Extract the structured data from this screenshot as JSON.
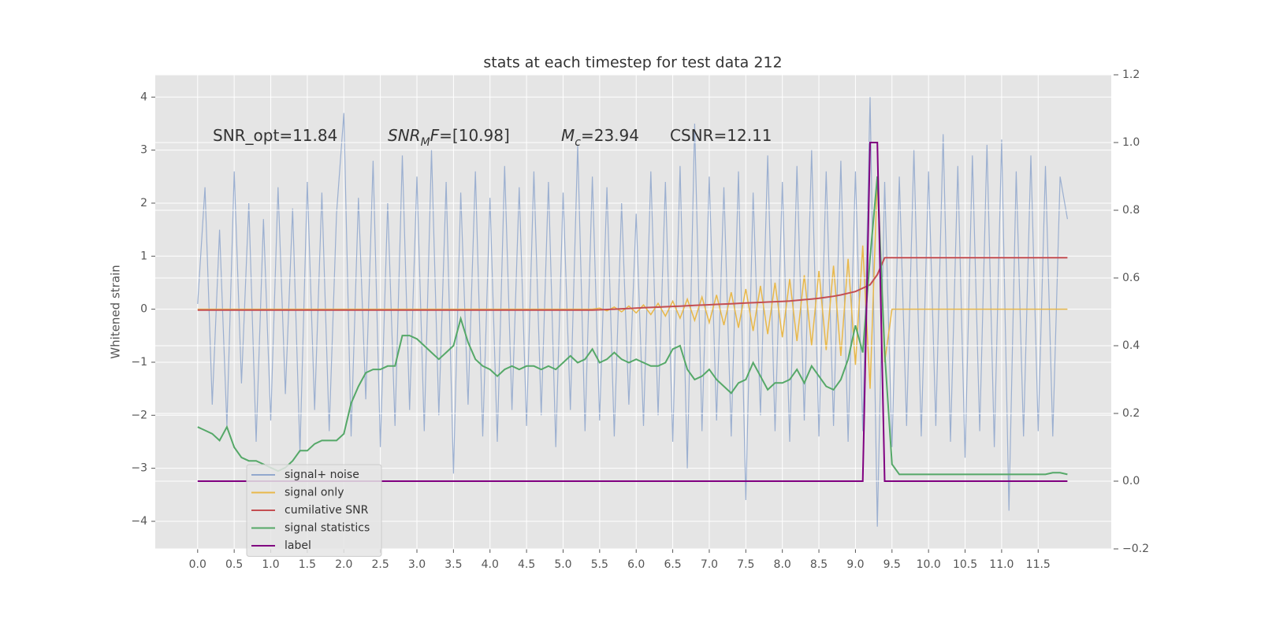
{
  "chart_data": {
    "type": "line",
    "title": "stats at each timestep for test data 212",
    "ylabel": "Whitened strain",
    "annotations": [
      [
        {
          "t": "SNR_opt=11.84"
        }
      ],
      [
        {
          "t": "SNR",
          "i": true
        },
        {
          "t": "M",
          "i": true,
          "sub": true
        },
        {
          "t": "F",
          "i": true
        },
        {
          "t": "=[10.98]"
        }
      ],
      [
        {
          "t": "M",
          "i": true
        },
        {
          "t": "c",
          "i": true,
          "sub": true
        },
        {
          "t": "=23.94"
        }
      ],
      [
        {
          "t": "CSNR=12.11"
        }
      ]
    ],
    "grid": true,
    "legend": "lower left",
    "xlim": [
      -0.58,
      12.5
    ],
    "ylim": [
      -4.52,
      4.42
    ],
    "y2lim": [
      -0.2,
      1.2
    ],
    "xticks": [
      {
        "value": 0,
        "label": "0.0"
      },
      {
        "value": 0.5,
        "label": "0.5"
      },
      {
        "value": 1,
        "label": "1.0"
      },
      {
        "value": 1.5,
        "label": "1.5"
      },
      {
        "value": 2,
        "label": "2.0"
      },
      {
        "value": 2.5,
        "label": "2.5"
      },
      {
        "value": 3,
        "label": "3.0"
      },
      {
        "value": 3.5,
        "label": "3.5"
      },
      {
        "value": 4,
        "label": "4.0"
      },
      {
        "value": 4.5,
        "label": "4.5"
      },
      {
        "value": 5,
        "label": "5.0"
      },
      {
        "value": 5.5,
        "label": "5.5"
      },
      {
        "value": 6,
        "label": "6.0"
      },
      {
        "value": 6.5,
        "label": "6.5"
      },
      {
        "value": 7,
        "label": "7.0"
      },
      {
        "value": 7.5,
        "label": "7.5"
      },
      {
        "value": 8,
        "label": "8.0"
      },
      {
        "value": 8.5,
        "label": "8.5"
      },
      {
        "value": 9,
        "label": "9.0"
      },
      {
        "value": 9.5,
        "label": "9.5"
      },
      {
        "value": 10,
        "label": "10.0"
      },
      {
        "value": 10.5,
        "label": "10.5"
      },
      {
        "value": 11,
        "label": "11.0"
      },
      {
        "value": 11.5,
        "label": "11.5"
      }
    ],
    "yticks": [
      {
        "value": -4,
        "label": "−4"
      },
      {
        "value": -3,
        "label": "−3"
      },
      {
        "value": -2,
        "label": "−2"
      },
      {
        "value": -1,
        "label": "−1"
      },
      0,
      1,
      2,
      3,
      4
    ],
    "y2ticks": [
      {
        "value": -0.2,
        "label": "−0.2"
      },
      {
        "value": 0,
        "label": "0.0"
      },
      {
        "value": 0.2,
        "label": "0.2"
      },
      {
        "value": 0.4,
        "label": "0.4"
      },
      {
        "value": 0.6,
        "label": "0.6"
      },
      {
        "value": 0.8,
        "label": "0.8"
      },
      {
        "value": 1,
        "label": "1.0"
      },
      {
        "value": 1.2,
        "label": "1.2"
      }
    ],
    "x": [
      0,
      0.1,
      0.2,
      0.3,
      0.4,
      0.5,
      0.6,
      0.7,
      0.8,
      0.9,
      1,
      1.1,
      1.2,
      1.3,
      1.4,
      1.5,
      1.6,
      1.7,
      1.8,
      1.9,
      2,
      2.1,
      2.2,
      2.3,
      2.4,
      2.5,
      2.6,
      2.7,
      2.8,
      2.9,
      3,
      3.1,
      3.2,
      3.3,
      3.4,
      3.5,
      3.6,
      3.7,
      3.8,
      3.9,
      4,
      4.1,
      4.2,
      4.3,
      4.4,
      4.5,
      4.6,
      4.7,
      4.8,
      4.9,
      5,
      5.1,
      5.2,
      5.3,
      5.4,
      5.5,
      5.6,
      5.7,
      5.8,
      5.9,
      6,
      6.1,
      6.2,
      6.3,
      6.4,
      6.5,
      6.6,
      6.7,
      6.8,
      6.9,
      7,
      7.1,
      7.2,
      7.3,
      7.4,
      7.5,
      7.6,
      7.7,
      7.8,
      7.9,
      8,
      8.1,
      8.2,
      8.3,
      8.4,
      8.5,
      8.6,
      8.7,
      8.8,
      8.9,
      9,
      9.1,
      9.2,
      9.3,
      9.4,
      9.5,
      9.6,
      9.7,
      9.8,
      9.9,
      10,
      10.1,
      10.2,
      10.3,
      10.4,
      10.5,
      10.6,
      10.7,
      10.8,
      10.9,
      11,
      11.1,
      11.2,
      11.3,
      11.4,
      11.5,
      11.6,
      11.7,
      11.8,
      11.9
    ],
    "series": [
      {
        "name": "signal+ noise",
        "color": "#92a8cd",
        "values": [
          0.1,
          2.3,
          -1.8,
          1.5,
          -2.2,
          2.6,
          -1.4,
          2.0,
          -2.5,
          1.7,
          -2.1,
          2.3,
          -1.6,
          1.9,
          -2.7,
          2.4,
          -1.9,
          2.2,
          -2.3,
          1.8,
          3.7,
          -2.4,
          2.1,
          -1.7,
          2.8,
          -2.6,
          2.0,
          -2.2,
          2.9,
          -1.9,
          2.5,
          -2.3,
          3.0,
          -2.0,
          2.4,
          -3.1,
          2.2,
          -1.8,
          2.6,
          -2.4,
          2.1,
          -2.5,
          2.7,
          -1.9,
          2.3,
          -2.2,
          2.6,
          -2.0,
          2.4,
          -2.6,
          2.2,
          -1.9,
          3.1,
          -2.3,
          2.5,
          -2.1,
          2.3,
          -2.4,
          2.0,
          -1.8,
          1.8,
          -2.2,
          2.6,
          -2.0,
          2.4,
          -2.5,
          2.7,
          -3.0,
          3.5,
          -2.3,
          2.5,
          -2.1,
          2.3,
          -2.4,
          2.6,
          -3.6,
          2.2,
          -2.0,
          2.9,
          -2.3,
          2.4,
          -2.5,
          2.7,
          -2.1,
          3.0,
          -2.4,
          2.6,
          -2.2,
          2.8,
          -2.5,
          2.6,
          -2.3,
          4.0,
          -4.1,
          2.4,
          -2.6,
          2.5,
          -2.2,
          3.0,
          -2.4,
          2.6,
          -2.2,
          3.3,
          -2.5,
          2.7,
          -2.8,
          2.9,
          -2.3,
          3.1,
          -2.6,
          3.2,
          -3.8,
          2.6,
          -2.4,
          2.9,
          -2.3,
          2.7,
          -2.4,
          2.5,
          1.7
        ]
      },
      {
        "name": "signal only",
        "color": "#e8b84a",
        "values": [
          0,
          0,
          0,
          0,
          0,
          0,
          0,
          0,
          0,
          0,
          0,
          0,
          0,
          0,
          0,
          0,
          0,
          0,
          0,
          0,
          0,
          0,
          0,
          0,
          0,
          0,
          0,
          0,
          0,
          0,
          0,
          0,
          0,
          0,
          0,
          0,
          0,
          0,
          0,
          0,
          0,
          0,
          0,
          0,
          0,
          0,
          0,
          0,
          0,
          0,
          0,
          0,
          0,
          0,
          0,
          0.02,
          -0.03,
          0.04,
          -0.05,
          0.06,
          -0.07,
          0.08,
          -0.1,
          0.11,
          -0.13,
          0.15,
          -0.17,
          0.19,
          -0.21,
          0.23,
          -0.25,
          0.27,
          -0.3,
          0.32,
          -0.35,
          0.38,
          -0.41,
          0.44,
          -0.47,
          0.5,
          -0.53,
          0.57,
          -0.6,
          0.64,
          -0.68,
          0.72,
          -0.77,
          0.82,
          -0.88,
          0.95,
          -1.05,
          1.2,
          -1.5,
          2.5,
          -1.0,
          0,
          0,
          0,
          0,
          0,
          0,
          0,
          0,
          0,
          0,
          0,
          0,
          0,
          0,
          0,
          0,
          0,
          0,
          0,
          0,
          0,
          0,
          0,
          0,
          0
        ]
      },
      {
        "name": "cumilative SNR",
        "color": "#c44e52",
        "axis": "y2",
        "values": [
          0.505,
          0.505,
          0.505,
          0.505,
          0.505,
          0.505,
          0.505,
          0.505,
          0.505,
          0.505,
          0.505,
          0.505,
          0.505,
          0.505,
          0.505,
          0.505,
          0.505,
          0.505,
          0.505,
          0.505,
          0.505,
          0.505,
          0.505,
          0.505,
          0.505,
          0.505,
          0.505,
          0.505,
          0.505,
          0.505,
          0.505,
          0.505,
          0.505,
          0.505,
          0.505,
          0.505,
          0.505,
          0.505,
          0.505,
          0.505,
          0.505,
          0.505,
          0.505,
          0.505,
          0.505,
          0.505,
          0.505,
          0.505,
          0.505,
          0.505,
          0.505,
          0.505,
          0.505,
          0.505,
          0.505,
          0.506,
          0.507,
          0.508,
          0.509,
          0.51,
          0.511,
          0.512,
          0.513,
          0.514,
          0.515,
          0.516,
          0.517,
          0.518,
          0.519,
          0.52,
          0.521,
          0.522,
          0.523,
          0.524,
          0.525,
          0.526,
          0.527,
          0.528,
          0.529,
          0.53,
          0.531,
          0.532,
          0.534,
          0.536,
          0.538,
          0.54,
          0.543,
          0.546,
          0.55,
          0.555,
          0.56,
          0.57,
          0.58,
          0.61,
          0.66,
          0.66,
          0.66,
          0.66,
          0.66,
          0.66,
          0.66,
          0.66,
          0.66,
          0.66,
          0.66,
          0.66,
          0.66,
          0.66,
          0.66,
          0.66,
          0.66,
          0.66,
          0.66,
          0.66,
          0.66,
          0.66,
          0.66,
          0.66,
          0.66,
          0.66
        ]
      },
      {
        "name": "signal statistics",
        "color": "#55a868",
        "axis": "y2",
        "values": [
          0.16,
          0.15,
          0.14,
          0.12,
          0.16,
          0.1,
          0.07,
          0.06,
          0.06,
          0.05,
          0.04,
          0.03,
          0.04,
          0.06,
          0.09,
          0.09,
          0.11,
          0.12,
          0.12,
          0.12,
          0.14,
          0.23,
          0.28,
          0.32,
          0.33,
          0.33,
          0.34,
          0.34,
          0.43,
          0.43,
          0.42,
          0.4,
          0.38,
          0.36,
          0.38,
          0.4,
          0.48,
          0.41,
          0.36,
          0.34,
          0.33,
          0.31,
          0.33,
          0.34,
          0.33,
          0.34,
          0.34,
          0.33,
          0.34,
          0.33,
          0.35,
          0.37,
          0.35,
          0.36,
          0.39,
          0.35,
          0.36,
          0.38,
          0.36,
          0.35,
          0.36,
          0.35,
          0.34,
          0.34,
          0.35,
          0.39,
          0.4,
          0.33,
          0.3,
          0.31,
          0.33,
          0.3,
          0.28,
          0.26,
          0.29,
          0.3,
          0.35,
          0.31,
          0.27,
          0.29,
          0.29,
          0.3,
          0.33,
          0.29,
          0.34,
          0.31,
          0.28,
          0.27,
          0.3,
          0.36,
          0.46,
          0.38,
          0.66,
          0.9,
          0.38,
          0.05,
          0.02,
          0.02,
          0.02,
          0.02,
          0.02,
          0.02,
          0.02,
          0.02,
          0.02,
          0.02,
          0.02,
          0.02,
          0.02,
          0.02,
          0.02,
          0.02,
          0.02,
          0.02,
          0.02,
          0.02,
          0.02,
          0.025,
          0.025,
          0.02
        ]
      },
      {
        "name": "label",
        "color": "#800080",
        "axis": "y2",
        "values": [
          0,
          0,
          0,
          0,
          0,
          0,
          0,
          0,
          0,
          0,
          0,
          0,
          0,
          0,
          0,
          0,
          0,
          0,
          0,
          0,
          0,
          0,
          0,
          0,
          0,
          0,
          0,
          0,
          0,
          0,
          0,
          0,
          0,
          0,
          0,
          0,
          0,
          0,
          0,
          0,
          0,
          0,
          0,
          0,
          0,
          0,
          0,
          0,
          0,
          0,
          0,
          0,
          0,
          0,
          0,
          0,
          0,
          0,
          0,
          0,
          0,
          0,
          0,
          0,
          0,
          0,
          0,
          0,
          0,
          0,
          0,
          0,
          0,
          0,
          0,
          0,
          0,
          0,
          0,
          0,
          0,
          0,
          0,
          0,
          0,
          0,
          0,
          0,
          0,
          0,
          0,
          0,
          1,
          1,
          0,
          0,
          0,
          0,
          0,
          0,
          0,
          0,
          0,
          0,
          0,
          0,
          0,
          0,
          0,
          0,
          0,
          0,
          0,
          0,
          0,
          0,
          0,
          0,
          0,
          0
        ]
      }
    ]
  }
}
